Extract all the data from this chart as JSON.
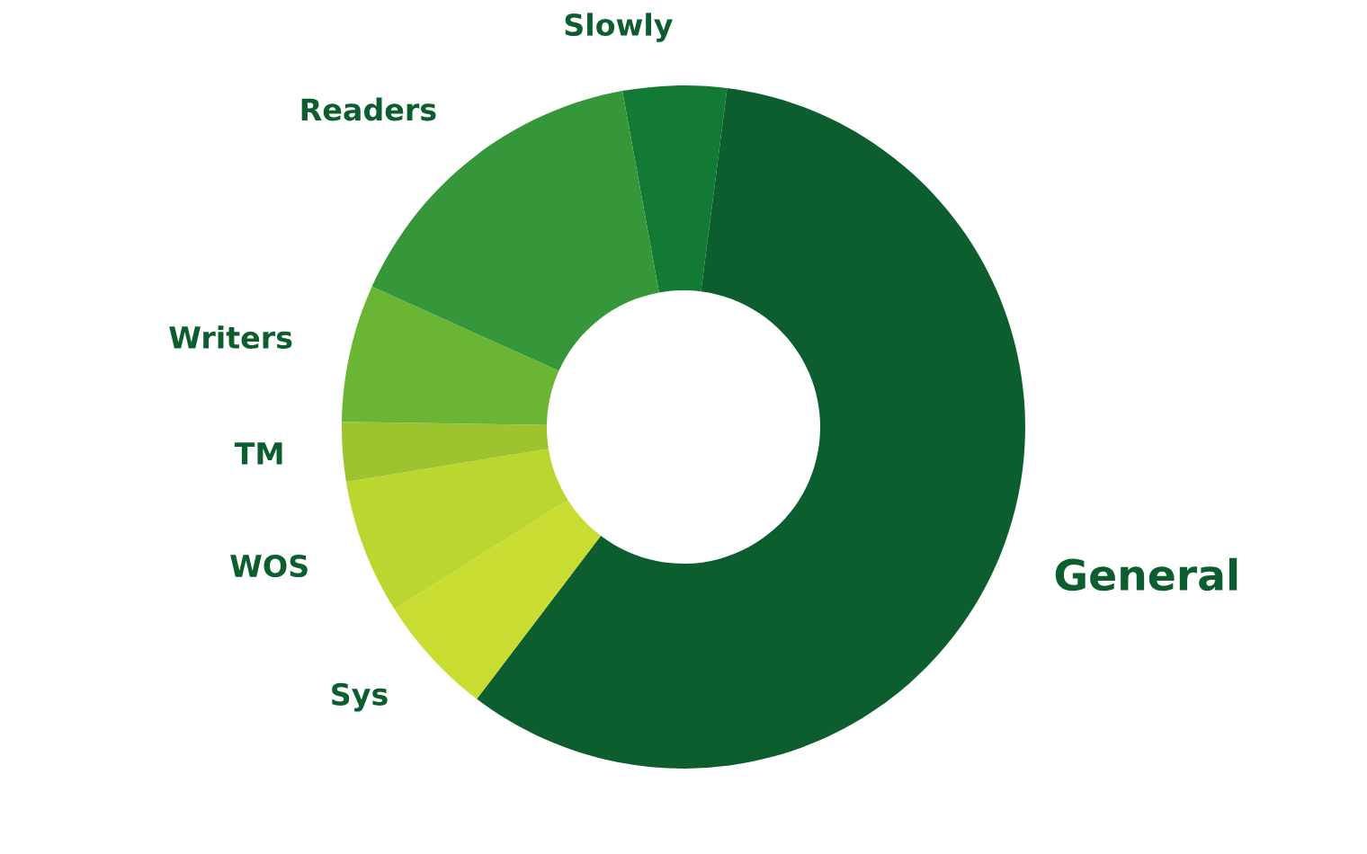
{
  "chart_data": {
    "type": "donut",
    "categories": [
      "Slowly",
      "General",
      "Sys",
      "WOS",
      "TM",
      "Writers",
      "Readers"
    ],
    "values": [
      4.9,
      58.3,
      5.7,
      6.4,
      2.8,
      6.5,
      15.4
    ],
    "colors": [
      "#137a35",
      "#0d5e2f",
      "#c8dc32",
      "#bcd630",
      "#9dc42f",
      "#6bb534",
      "#35963a"
    ],
    "legend": false
  }
}
